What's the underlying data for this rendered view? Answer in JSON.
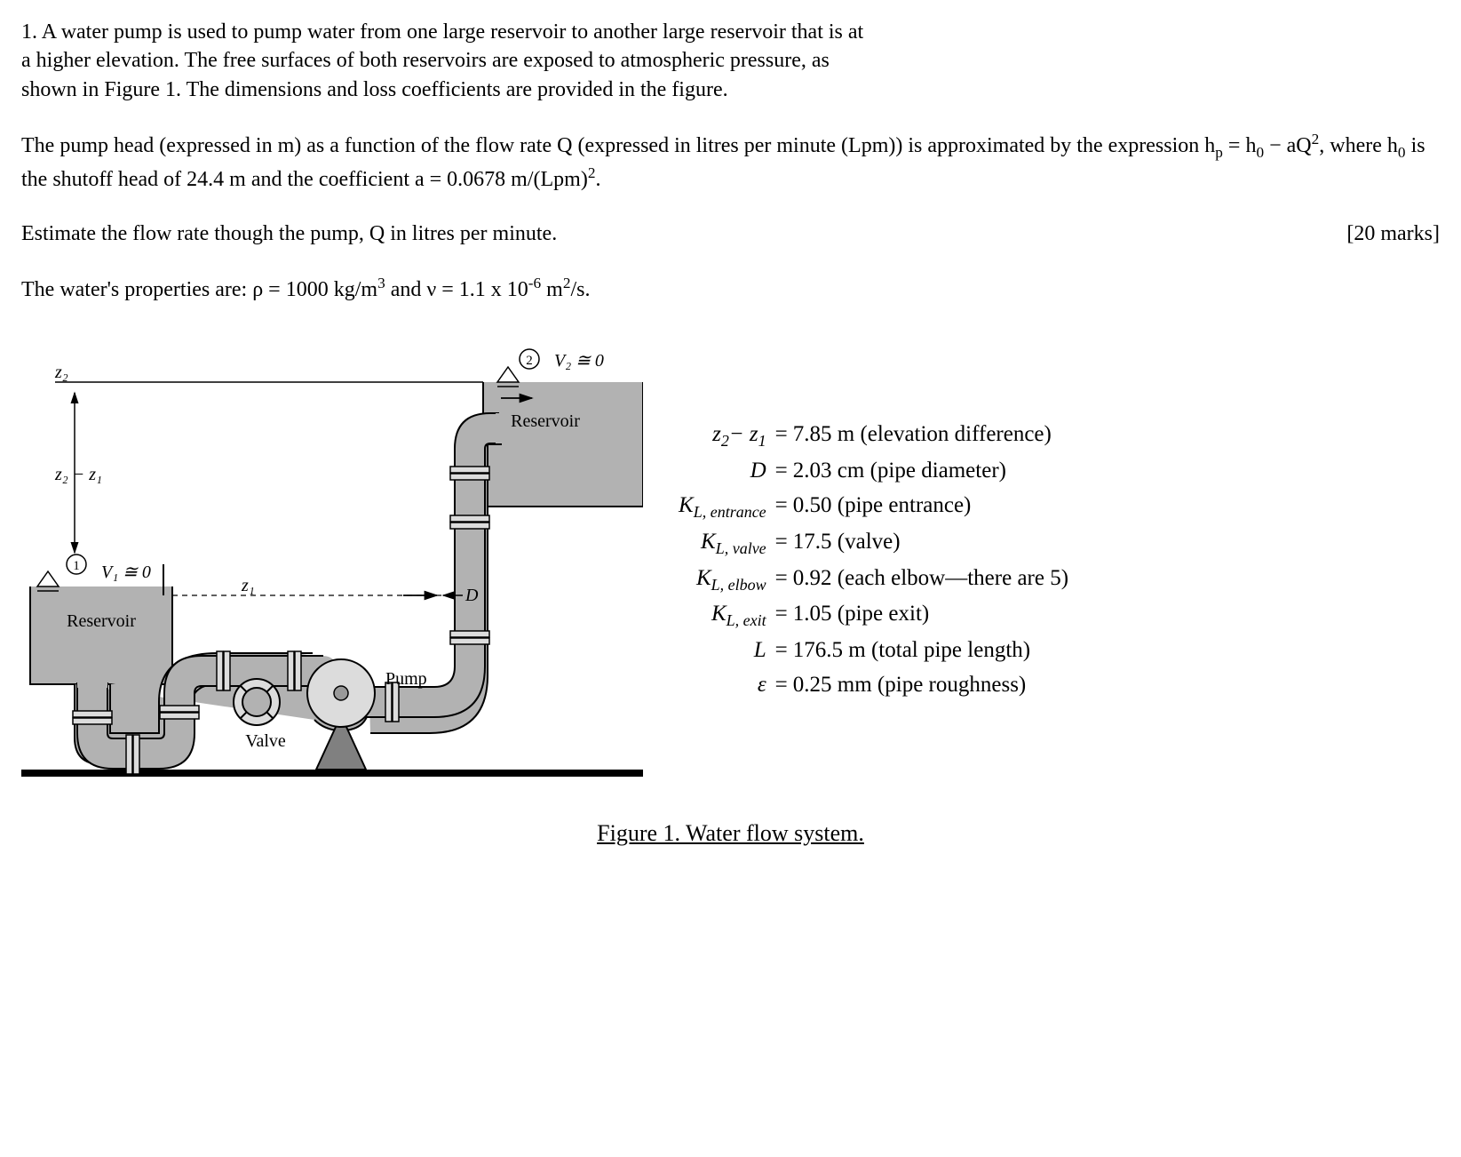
{
  "problem": {
    "number": "1.",
    "p1_a": "A water pump is used to pump water from one large reservoir to another large reservoir that is at",
    "p1_b": "a higher elevation. The free surfaces of both reservoirs are exposed to atmospheric pressure, as",
    "p1_c": "shown in Figure 1. The dimensions and loss coefficients are provided in the figure.",
    "p2_a": "The pump head (expressed in m) as a function of the flow rate Q (expressed in litres per minute (Lpm)) is approximated by the expression h",
    "p2_b": " = h",
    "p2_c": " − aQ",
    "p2_d": ", where h",
    "p2_e": " is the shutoff head of 24.4 m and the coefficient a = 0.0678 m/(Lpm)",
    "p2_f": ".",
    "p3": "Estimate the flow rate though the pump, Q in litres per minute.",
    "marks": "[20 marks]",
    "p4_a": "The water's properties are: ρ = 1000 kg/m",
    "p4_b": " and ν = 1.1 x 10",
    "p4_c": " m",
    "p4_d": "/s."
  },
  "figure": {
    "caption": "Figure 1. Water flow system.",
    "labels": {
      "z2": "z₂",
      "z2_minus_z1": "z₂ − z₁",
      "z1": "z₁",
      "v1": "V₁ ≅ 0",
      "v2": "V₂ ≅ 0",
      "reservoir": "Reservoir",
      "valve": "Valve",
      "pump": "Pump",
      "D": "D",
      "point1": "1",
      "point2": "2"
    }
  },
  "params": {
    "rows": [
      {
        "sym": "z<sub>2</sub>− z<sub>1</sub>",
        "val": "7.85 m (elevation difference)"
      },
      {
        "sym": "D",
        "val": "2.03 cm (pipe diameter)"
      },
      {
        "sym": "K<sub>L, entrance</sub>",
        "val": "0.50 (pipe entrance)"
      },
      {
        "sym": "K<sub>L, valve</sub>",
        "val": "17.5 (valve)"
      },
      {
        "sym": "K<sub>L, elbow</sub>",
        "val": "0.92 (each elbow—there are 5)"
      },
      {
        "sym": "K<sub>L, exit</sub>",
        "val": "1.05 (pipe exit)"
      },
      {
        "sym": "L",
        "val": "176.5 m (total pipe length)"
      },
      {
        "sym": "ε",
        "val": "0.25 mm (pipe roughness)"
      }
    ]
  },
  "style": {
    "pipe_fill": "#b2b2b2",
    "pipe_stroke": "#000000",
    "pipe_stroke_w": 2,
    "flange_fill": "#dcdcdc",
    "reservoir_fill": "#b2b2b2",
    "ground_stroke": "#000000",
    "ground_w": 8,
    "pump_cone": "#808080",
    "text_fill": "#000000",
    "font_size_diag": 20
  }
}
